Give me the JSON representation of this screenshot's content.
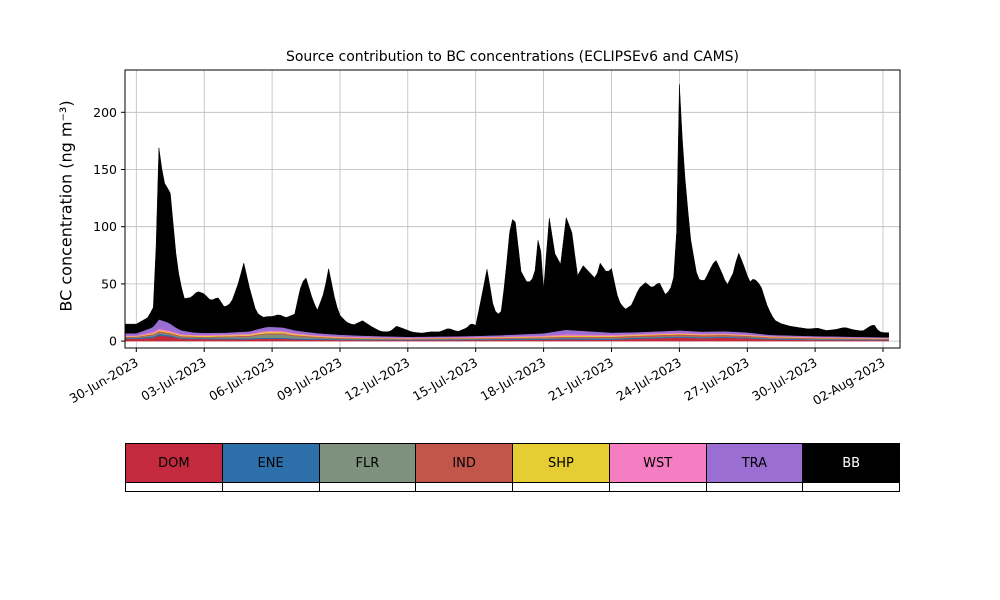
{
  "chart_data": {
    "type": "area",
    "stacked": true,
    "title": "Source contribution to BC concentrations (ECLIPSEv6 and CAMS)",
    "ylabel": "BC concentration (ng m⁻³)",
    "xlabel": "",
    "grid": true,
    "grid_color": "#bcbcbc",
    "legend_position": "bottom-table",
    "ylim": [
      -6,
      237
    ],
    "yticks": [
      0,
      50,
      100,
      150,
      200
    ],
    "x_unit": "days since 30-Jun-2023 00:00",
    "xlim": [
      -0.5,
      33.75
    ],
    "sample_range": [
      -0.5,
      33.3
    ],
    "sample_step": 0.125,
    "xticks": [
      {
        "day": 0,
        "label": "30-Jun-2023"
      },
      {
        "day": 3,
        "label": "03-Jul-2023"
      },
      {
        "day": 6,
        "label": "06-Jul-2023"
      },
      {
        "day": 9,
        "label": "09-Jul-2023"
      },
      {
        "day": 12,
        "label": "12-Jul-2023"
      },
      {
        "day": 15,
        "label": "15-Jul-2023"
      },
      {
        "day": 18,
        "label": "18-Jul-2023"
      },
      {
        "day": 21,
        "label": "21-Jul-2023"
      },
      {
        "day": 24,
        "label": "24-Jul-2023"
      },
      {
        "day": 27,
        "label": "27-Jul-2023"
      },
      {
        "day": 30,
        "label": "30-Jul-2023"
      },
      {
        "day": 33,
        "label": "02-Aug-2023"
      }
    ],
    "series": [
      {
        "name": "DOM",
        "color": "#c42a3d",
        "keyframes": [
          [
            0,
            2
          ],
          [
            0.8,
            3
          ],
          [
            1,
            5
          ],
          [
            1.5,
            4
          ],
          [
            2,
            2
          ],
          [
            5,
            1.5
          ],
          [
            5.5,
            2
          ],
          [
            6.5,
            2
          ],
          [
            7,
            1.5
          ],
          [
            9,
            1
          ],
          [
            12,
            0.8
          ],
          [
            15,
            1
          ],
          [
            18,
            1.2
          ],
          [
            19,
            1.5
          ],
          [
            21,
            1.2
          ],
          [
            22,
            2
          ],
          [
            23,
            2.5
          ],
          [
            24,
            3
          ],
          [
            25,
            2.5
          ],
          [
            26,
            3
          ],
          [
            27,
            2.5
          ],
          [
            28,
            1.5
          ],
          [
            30,
            1
          ],
          [
            33.25,
            0.8
          ]
        ]
      },
      {
        "name": "ENE",
        "color": "#2d6fa8",
        "keyframes": [
          [
            0,
            0.8
          ],
          [
            1,
            1.5
          ],
          [
            2,
            0.8
          ],
          [
            6,
            1
          ],
          [
            12,
            0.5
          ],
          [
            16,
            0.8
          ],
          [
            19,
            1
          ],
          [
            24,
            1
          ],
          [
            27,
            0.8
          ],
          [
            33.25,
            0.5
          ]
        ]
      },
      {
        "name": "FLR",
        "color": "#7d917c",
        "keyframes": [
          [
            0,
            0.5
          ],
          [
            1,
            1
          ],
          [
            3,
            0.5
          ],
          [
            5,
            1.5
          ],
          [
            5.8,
            3
          ],
          [
            6.5,
            3
          ],
          [
            7,
            2
          ],
          [
            8,
            1
          ],
          [
            9,
            0.5
          ],
          [
            15,
            0.3
          ],
          [
            19,
            0.5
          ],
          [
            24,
            0.5
          ],
          [
            33.25,
            0.3
          ]
        ]
      },
      {
        "name": "IND",
        "color": "#c2564b",
        "keyframes": [
          [
            0,
            0.6
          ],
          [
            1,
            1.2
          ],
          [
            3,
            0.6
          ],
          [
            6,
            1
          ],
          [
            10,
            0.5
          ],
          [
            16,
            0.6
          ],
          [
            19,
            1
          ],
          [
            22,
            1.2
          ],
          [
            24,
            1.5
          ],
          [
            26,
            1.2
          ],
          [
            28,
            0.8
          ],
          [
            33.25,
            0.5
          ]
        ]
      },
      {
        "name": "SHP",
        "color": "#e6cd33",
        "keyframes": [
          [
            0,
            0.4
          ],
          [
            1,
            0.8
          ],
          [
            5,
            0.8
          ],
          [
            6,
            1.2
          ],
          [
            8,
            0.6
          ],
          [
            12,
            0.3
          ],
          [
            18,
            0.6
          ],
          [
            19,
            0.8
          ],
          [
            24,
            0.6
          ],
          [
            33.25,
            0.3
          ]
        ]
      },
      {
        "name": "WST",
        "color": "#f47ec1",
        "keyframes": [
          [
            0,
            0.6
          ],
          [
            1,
            1.5
          ],
          [
            2,
            0.8
          ],
          [
            6,
            1
          ],
          [
            12,
            0.4
          ],
          [
            18,
            0.8
          ],
          [
            19,
            1.2
          ],
          [
            20,
            1
          ],
          [
            24,
            0.8
          ],
          [
            27,
            0.6
          ],
          [
            33.25,
            0.4
          ]
        ]
      },
      {
        "name": "TRA",
        "color": "#9a6ed2",
        "keyframes": [
          [
            0,
            2
          ],
          [
            0.7,
            4
          ],
          [
            1,
            8
          ],
          [
            1.4,
            7
          ],
          [
            1.8,
            4
          ],
          [
            2.5,
            2
          ],
          [
            4,
            1.5
          ],
          [
            5,
            2
          ],
          [
            5.8,
            3.5
          ],
          [
            6.5,
            3
          ],
          [
            7.5,
            2
          ],
          [
            9,
            1.5
          ],
          [
            11,
            1
          ],
          [
            14,
            0.8
          ],
          [
            16,
            1.2
          ],
          [
            18,
            2
          ],
          [
            19,
            4
          ],
          [
            19.5,
            3.5
          ],
          [
            20,
            3
          ],
          [
            21,
            2
          ],
          [
            22,
            1.5
          ],
          [
            24,
            2
          ],
          [
            25,
            1.8
          ],
          [
            26,
            2
          ],
          [
            27,
            1.8
          ],
          [
            28,
            1
          ],
          [
            30,
            0.8
          ],
          [
            33.25,
            0.6
          ]
        ]
      },
      {
        "name": "BB",
        "color": "#000000",
        "keyframes": [
          [
            0,
            8
          ],
          [
            0.5,
            10
          ],
          [
            0.8,
            18
          ],
          [
            1,
            150
          ],
          [
            1.2,
            122
          ],
          [
            1.5,
            114
          ],
          [
            1.8,
            55
          ],
          [
            2.1,
            28
          ],
          [
            2.4,
            30
          ],
          [
            2.7,
            36
          ],
          [
            3,
            34
          ],
          [
            3.3,
            28
          ],
          [
            3.6,
            31
          ],
          [
            3.9,
            22
          ],
          [
            4.2,
            26
          ],
          [
            4.5,
            42
          ],
          [
            4.75,
            60
          ],
          [
            5,
            38
          ],
          [
            5.3,
            15
          ],
          [
            5.6,
            9
          ],
          [
            6,
            9
          ],
          [
            6.3,
            11
          ],
          [
            6.6,
            9
          ],
          [
            7,
            14
          ],
          [
            7.3,
            42
          ],
          [
            7.5,
            47
          ],
          [
            7.8,
            28
          ],
          [
            8,
            20
          ],
          [
            8.3,
            36
          ],
          [
            8.5,
            57
          ],
          [
            8.8,
            28
          ],
          [
            9,
            17
          ],
          [
            9.3,
            11
          ],
          [
            9.6,
            9
          ],
          [
            10,
            13
          ],
          [
            10.4,
            8
          ],
          [
            10.8,
            4
          ],
          [
            11.2,
            4
          ],
          [
            11.5,
            9
          ],
          [
            11.8,
            7
          ],
          [
            12.2,
            4
          ],
          [
            12.6,
            3
          ],
          [
            13,
            4
          ],
          [
            13.4,
            4
          ],
          [
            13.8,
            7
          ],
          [
            14.2,
            4
          ],
          [
            14.6,
            7
          ],
          [
            14.8,
            11
          ],
          [
            15,
            9
          ],
          [
            15.3,
            38
          ],
          [
            15.5,
            58
          ],
          [
            15.8,
            22
          ],
          [
            16.1,
            17
          ],
          [
            16.3,
            48
          ],
          [
            16.5,
            90
          ],
          [
            16.7,
            107
          ],
          [
            17,
            55
          ],
          [
            17.3,
            44
          ],
          [
            17.6,
            50
          ],
          [
            17.8,
            92
          ],
          [
            18,
            38
          ],
          [
            18.25,
            100
          ],
          [
            18.5,
            68
          ],
          [
            18.75,
            58
          ],
          [
            19,
            98
          ],
          [
            19.25,
            85
          ],
          [
            19.5,
            48
          ],
          [
            19.75,
            57
          ],
          [
            20,
            52
          ],
          [
            20.3,
            46
          ],
          [
            20.5,
            60
          ],
          [
            20.8,
            52
          ],
          [
            21,
            56
          ],
          [
            21.3,
            28
          ],
          [
            21.6,
            20
          ],
          [
            21.9,
            24
          ],
          [
            22.2,
            38
          ],
          [
            22.5,
            43
          ],
          [
            22.8,
            38
          ],
          [
            23.1,
            43
          ],
          [
            23.4,
            31
          ],
          [
            23.7,
            40
          ],
          [
            23.85,
            60
          ],
          [
            24,
            215
          ],
          [
            24.15,
            160
          ],
          [
            24.3,
            120
          ],
          [
            24.5,
            80
          ],
          [
            24.8,
            46
          ],
          [
            25.1,
            44
          ],
          [
            25.4,
            56
          ],
          [
            25.6,
            63
          ],
          [
            25.9,
            50
          ],
          [
            26.1,
            40
          ],
          [
            26.4,
            52
          ],
          [
            26.6,
            70
          ],
          [
            26.85,
            58
          ],
          [
            27.1,
            44
          ],
          [
            27.3,
            48
          ],
          [
            27.6,
            42
          ],
          [
            27.9,
            24
          ],
          [
            28.2,
            13
          ],
          [
            28.5,
            10
          ],
          [
            28.9,
            8
          ],
          [
            29.3,
            7
          ],
          [
            29.7,
            6
          ],
          [
            30.1,
            7
          ],
          [
            30.5,
            5
          ],
          [
            30.9,
            6
          ],
          [
            31.3,
            8
          ],
          [
            31.7,
            6
          ],
          [
            32.1,
            5
          ],
          [
            32.4,
            9
          ],
          [
            32.6,
            11
          ],
          [
            32.8,
            5
          ],
          [
            33,
            4
          ],
          [
            33.25,
            4
          ]
        ]
      }
    ]
  }
}
